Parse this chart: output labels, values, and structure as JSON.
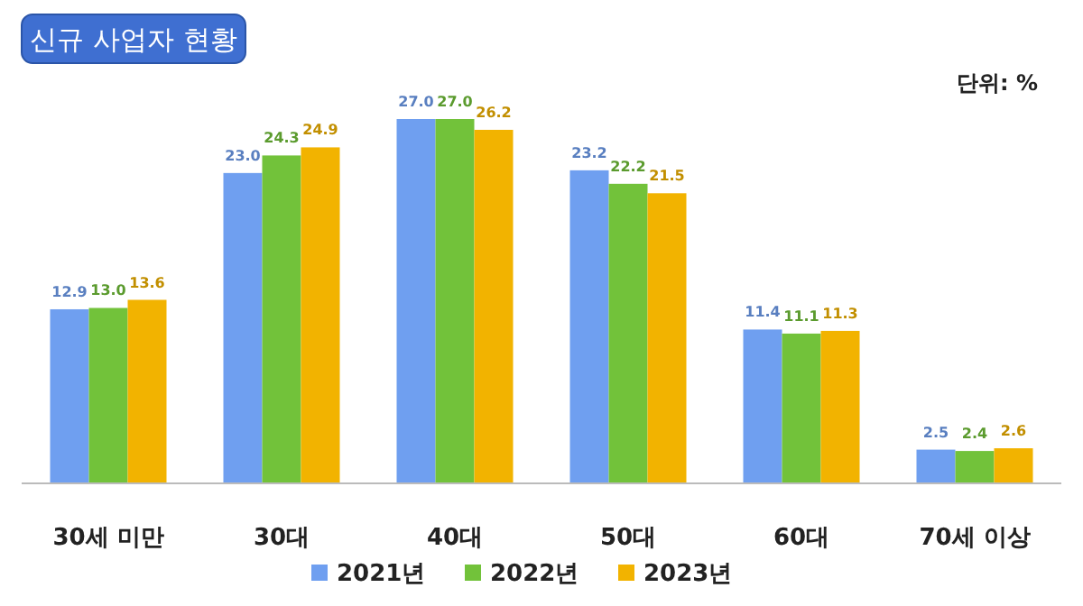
{
  "chart_data": {
    "type": "bar",
    "title": "신규 사업자 현황",
    "annotations": [
      "단위: %"
    ],
    "categories": [
      "30세 미만",
      "30대",
      "40대",
      "50대",
      "60대",
      "70세 이상"
    ],
    "series": [
      {
        "name": "2021년",
        "color": "#6f9ff0",
        "values": [
          12.9,
          23.0,
          27.0,
          23.2,
          11.4,
          2.5
        ],
        "value_labels": [
          "12.9",
          "23.0",
          "27.0",
          "23.2",
          "11.4",
          "2.5"
        ]
      },
      {
        "name": "2022년",
        "color": "#72c23a",
        "values": [
          13.0,
          24.3,
          27.0,
          22.2,
          11.1,
          2.4
        ],
        "value_labels": [
          "13.0",
          "24.3",
          "27.0",
          "22.2",
          "11.1",
          "2.4"
        ]
      },
      {
        "name": "2023년",
        "color": "#f2b300",
        "values": [
          13.6,
          24.9,
          26.2,
          21.5,
          11.3,
          2.6
        ],
        "value_labels": [
          "13.6",
          "24.9",
          "26.2",
          "21.5",
          "11.3",
          "2.6"
        ]
      }
    ],
    "legend": "bottom"
  }
}
